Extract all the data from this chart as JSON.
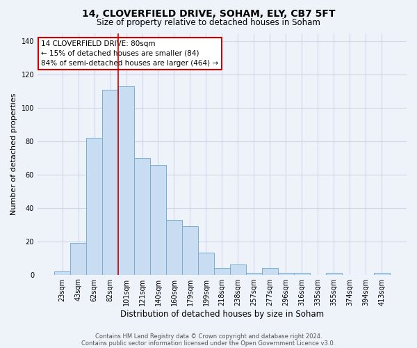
{
  "title": "14, CLOVERFIELD DRIVE, SOHAM, ELY, CB7 5FT",
  "subtitle": "Size of property relative to detached houses in Soham",
  "xlabel": "Distribution of detached houses by size in Soham",
  "ylabel": "Number of detached properties",
  "bin_labels": [
    "23sqm",
    "43sqm",
    "62sqm",
    "82sqm",
    "101sqm",
    "121sqm",
    "140sqm",
    "160sqm",
    "179sqm",
    "199sqm",
    "218sqm",
    "238sqm",
    "257sqm",
    "277sqm",
    "296sqm",
    "316sqm",
    "335sqm",
    "355sqm",
    "374sqm",
    "394sqm",
    "413sqm"
  ],
  "bar_values": [
    2,
    19,
    82,
    111,
    113,
    70,
    66,
    33,
    29,
    13,
    4,
    6,
    1,
    4,
    1,
    1,
    0,
    1,
    0,
    0,
    1
  ],
  "bar_color": "#c8ddf2",
  "bar_edge_color": "#7aadce",
  "ylim": [
    0,
    145
  ],
  "yticks": [
    0,
    20,
    40,
    60,
    80,
    100,
    120,
    140
  ],
  "vline_color": "#cc0000",
  "vline_position": 3.5,
  "annotation_text": "14 CLOVERFIELD DRIVE: 80sqm\n← 15% of detached houses are smaller (84)\n84% of semi-detached houses are larger (464) →",
  "annotation_box_color": "#ffffff",
  "annotation_box_edge": "#cc0000",
  "footer_line1": "Contains HM Land Registry data © Crown copyright and database right 2024.",
  "footer_line2": "Contains public sector information licensed under the Open Government Licence v3.0.",
  "background_color": "#eef2f9",
  "grid_color": "#d0d8e8",
  "title_fontsize": 10,
  "subtitle_fontsize": 8.5,
  "ylabel_fontsize": 8,
  "xlabel_fontsize": 8.5,
  "tick_fontsize": 7,
  "annotation_fontsize": 7.5,
  "footer_fontsize": 6
}
